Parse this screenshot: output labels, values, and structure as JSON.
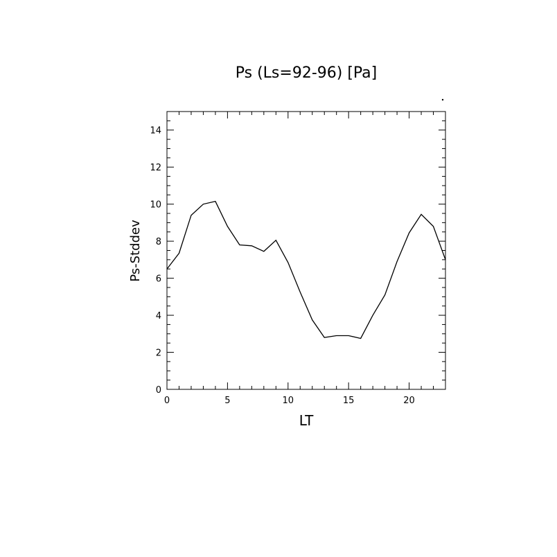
{
  "chart_data": {
    "type": "line",
    "title": "Ps (Ls=92-96) [Pa]",
    "xlabel": "LT",
    "ylabel": "Ps-Stddev",
    "xlim": [
      0,
      23
    ],
    "ylim": [
      0,
      15
    ],
    "x_ticks": [
      0,
      5,
      10,
      15,
      20
    ],
    "y_ticks": [
      0,
      2,
      4,
      6,
      8,
      10,
      12,
      14
    ],
    "grid": false,
    "legend": "none",
    "line_color": "#000000",
    "series": [
      {
        "x": [
          0,
          1,
          2,
          3,
          4,
          5,
          6,
          7,
          8,
          9,
          10,
          11,
          12,
          13,
          14,
          15,
          16,
          17,
          18,
          19,
          20,
          21,
          22,
          23
        ],
        "values": [
          6.5,
          7.35,
          9.4,
          10.0,
          10.15,
          8.8,
          7.8,
          7.75,
          7.45,
          8.05,
          6.85,
          5.25,
          3.75,
          2.8,
          2.9,
          2.9,
          2.75,
          4.0,
          5.1,
          6.9,
          8.45,
          9.45,
          8.8,
          7.0
        ]
      }
    ]
  }
}
